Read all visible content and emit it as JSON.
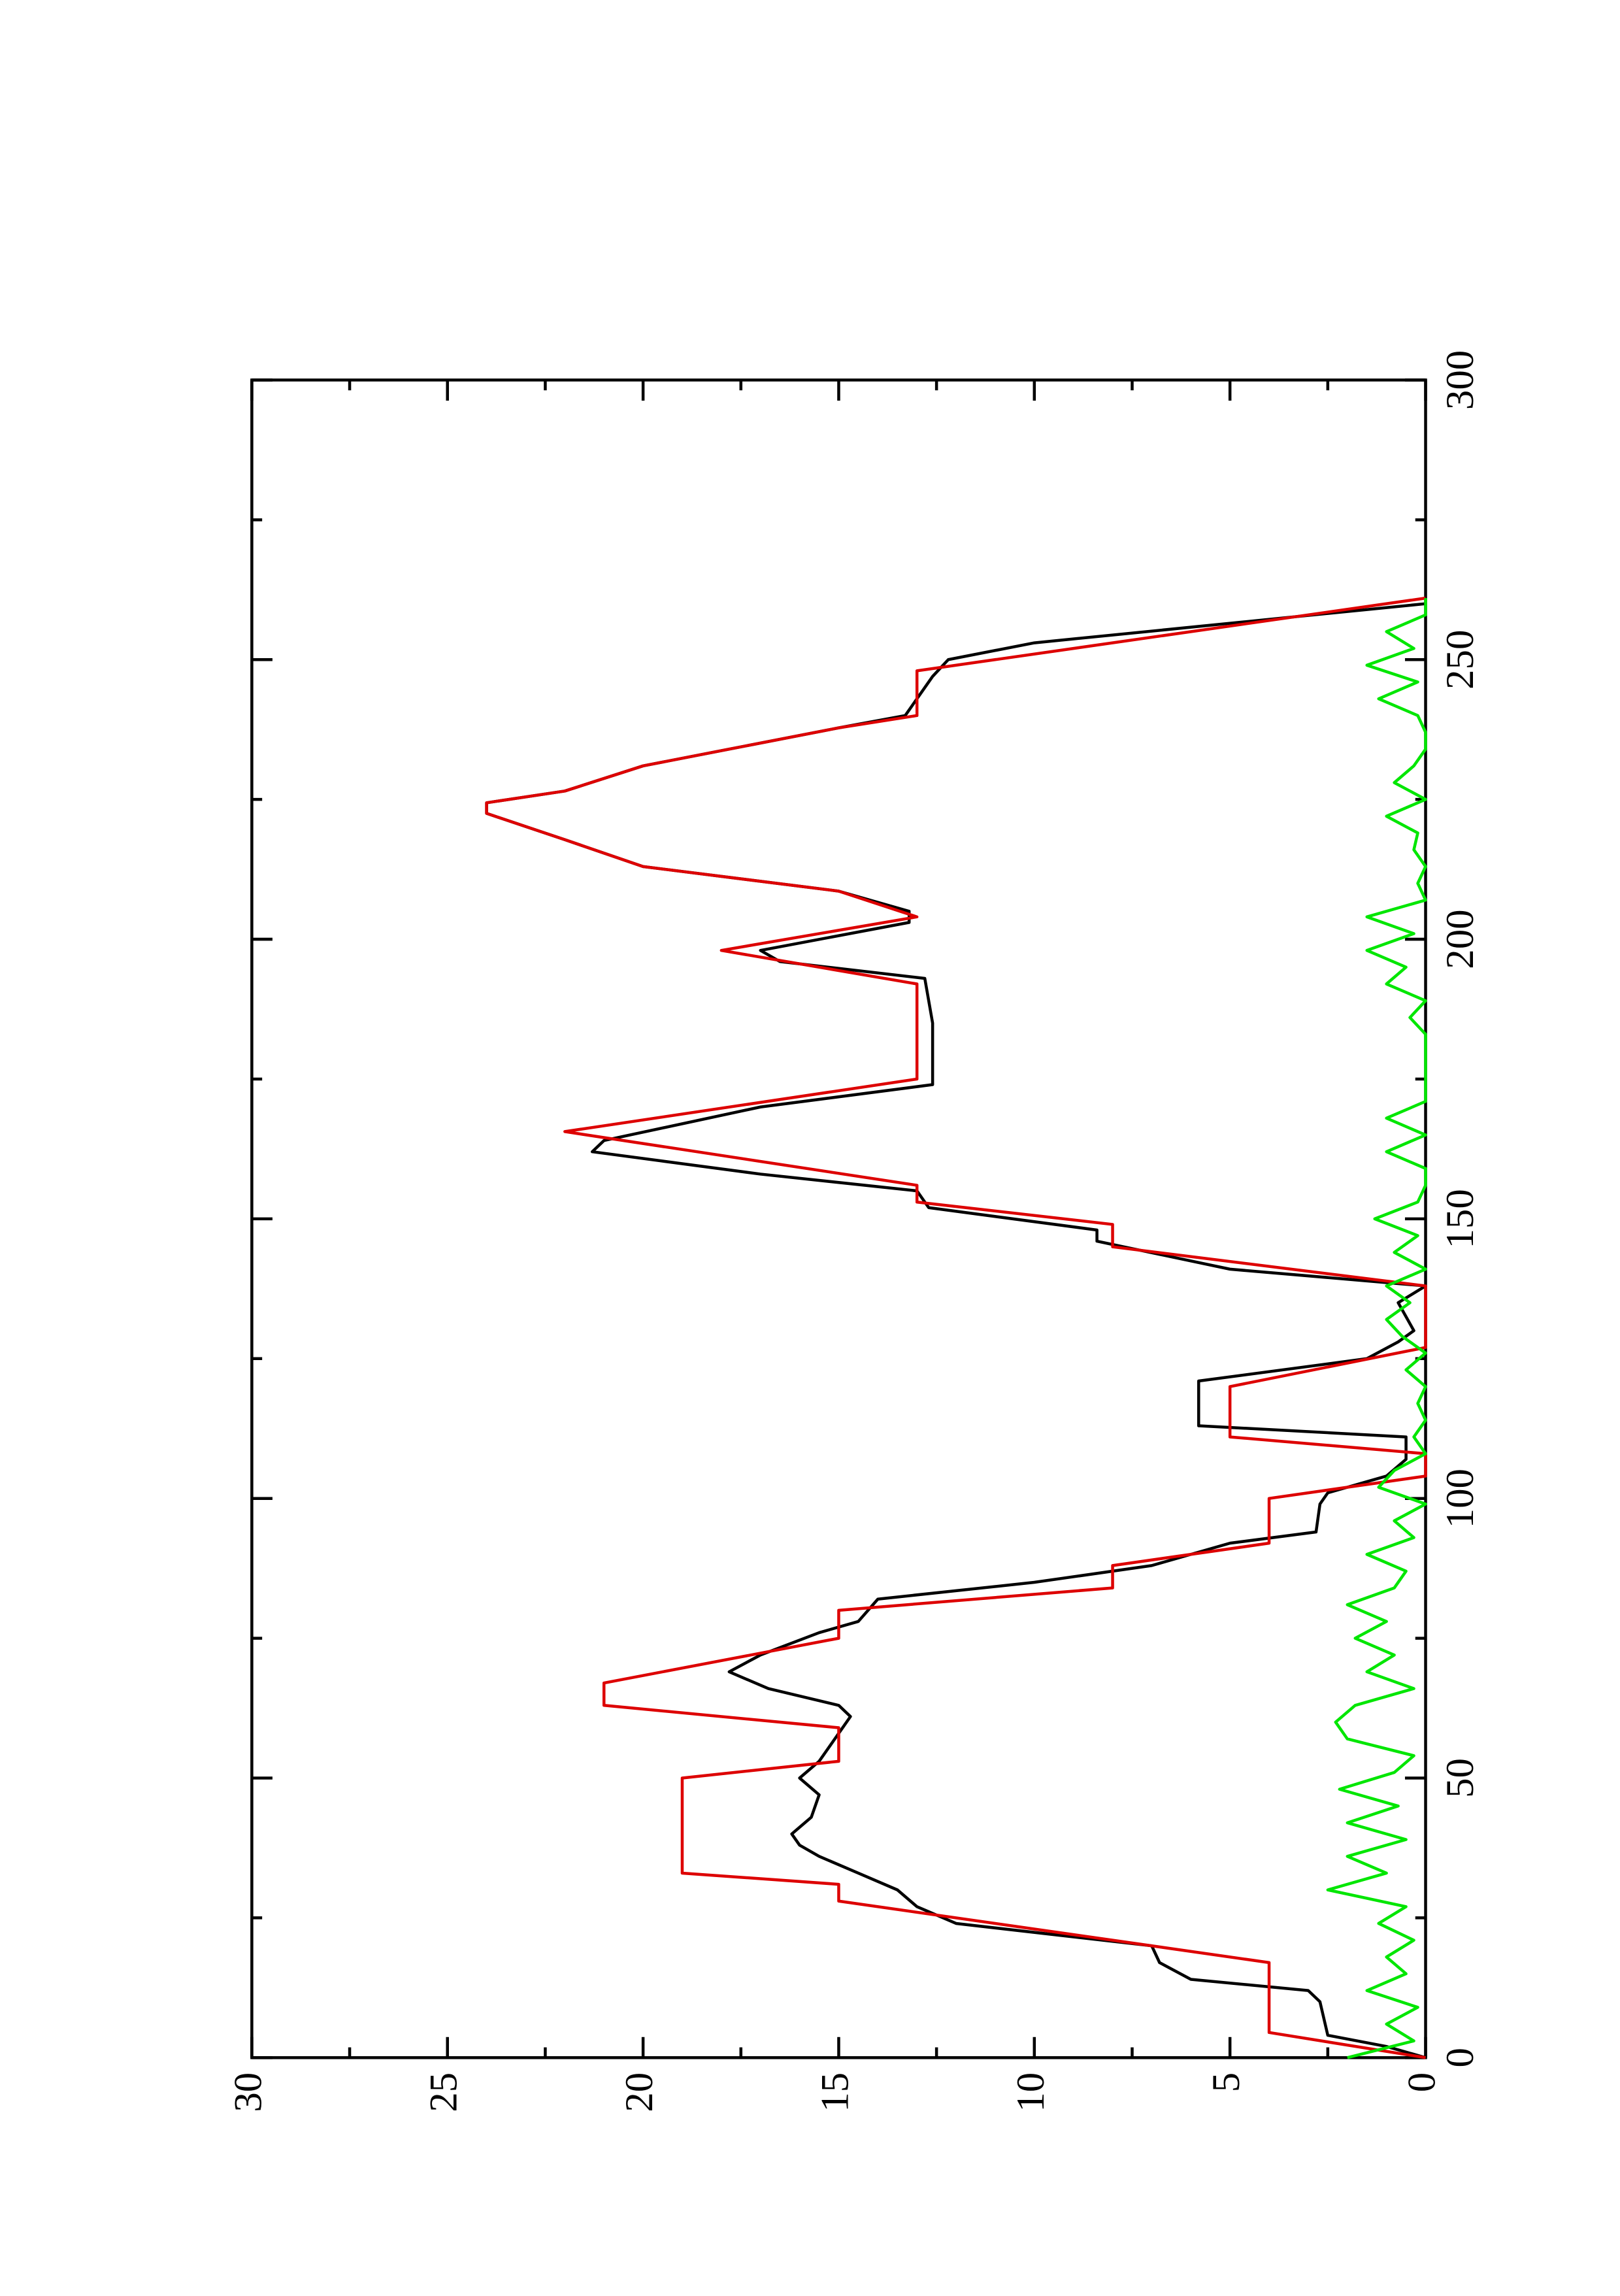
{
  "chart_data": {
    "type": "line",
    "xlim": [
      0,
      300
    ],
    "xticks": [
      0,
      50,
      100,
      150,
      200,
      250,
      300
    ],
    "ylim": [
      0,
      30
    ],
    "yticks": [
      0,
      5,
      10,
      15,
      20,
      25,
      30
    ],
    "series": [
      {
        "color": "#000000",
        "x": [
          0,
          2,
          4,
          10,
          12,
          14,
          17,
          20,
          24,
          27,
          30,
          33,
          36,
          38,
          40,
          43,
          47,
          50,
          53,
          58,
          61,
          63,
          66,
          69,
          72,
          76,
          78,
          82,
          85,
          88,
          92,
          94,
          99,
          101,
          104,
          107,
          111,
          113,
          121,
          125,
          128,
          130,
          135,
          138,
          141,
          146,
          148,
          152,
          155,
          158,
          162,
          164,
          170,
          174,
          185,
          193,
          196,
          198,
          203,
          205,
          208.6,
          213,
          217.8,
          222.5,
          224.4,
          226.5,
          231,
          237.8,
          240,
          244,
          247,
          250,
          253,
          260
        ],
        "values": [
          0,
          1,
          2.5,
          2.7,
          3,
          6,
          6.8,
          7,
          12,
          13,
          13.5,
          14.5,
          15.5,
          16,
          16.2,
          15.7,
          15.5,
          16,
          15.5,
          15,
          14.7,
          15,
          16.8,
          17.8,
          17,
          15.5,
          14.5,
          14,
          10,
          7,
          5,
          2.8,
          2.7,
          2.5,
          1,
          0.5,
          0.5,
          5.8,
          5.8,
          1.5,
          0.7,
          0.3,
          0.7,
          0,
          5,
          8.4,
          8.4,
          12.7,
          13,
          17,
          21.3,
          21,
          17,
          12.6,
          12.6,
          12.8,
          16.5,
          17,
          13.2,
          13.2,
          15,
          20,
          22,
          24,
          24,
          22,
          20,
          15,
          13.3,
          12.9,
          12.6,
          12.2,
          10,
          0
        ]
      },
      {
        "color": "#dd0000",
        "x": [
          0,
          4.5,
          17,
          21,
          28,
          31,
          33,
          50,
          53,
          59,
          63,
          67,
          75,
          80,
          84,
          88,
          92,
          100,
          104,
          108,
          111,
          120,
          127,
          138,
          145,
          149,
          153,
          156,
          165.6,
          175,
          192,
          198,
          204,
          208.6,
          213,
          217.8,
          222.5,
          224.4,
          226.5,
          231,
          237.8,
          240,
          248,
          261
        ],
        "values": [
          0,
          4,
          4,
          8,
          15,
          15,
          19,
          19,
          15,
          15,
          21,
          21,
          15,
          15,
          8,
          8,
          4,
          4,
          0,
          0,
          5,
          5,
          0,
          0,
          8,
          8,
          13,
          13,
          22,
          13,
          13,
          18,
          13,
          15,
          20,
          22,
          24,
          24,
          22,
          20,
          15,
          13,
          13,
          0
        ]
      },
      {
        "color": "#00e600",
        "x": [
          0,
          3,
          6,
          9,
          12,
          15,
          18,
          21,
          24,
          27,
          30,
          33,
          36,
          39,
          42,
          45,
          48,
          51,
          54,
          57,
          60,
          63,
          66,
          69,
          72,
          75,
          78,
          81,
          84,
          87,
          90,
          93,
          96,
          99,
          102,
          105,
          108,
          111,
          114,
          117,
          120,
          123,
          126,
          129,
          132,
          135,
          138,
          141,
          144,
          147,
          150,
          153,
          156,
          159,
          162,
          165,
          168,
          171,
          174,
          177,
          180,
          183,
          186,
          189,
          192,
          195,
          198,
          201,
          204,
          207,
          210,
          213,
          216,
          219,
          222,
          225,
          228,
          231,
          234,
          237,
          240,
          243,
          246,
          249,
          252,
          255,
          258,
          261
        ],
        "values": [
          2,
          0.3,
          1,
          0.2,
          1.5,
          0.5,
          1,
          0.3,
          1.2,
          0.5,
          2.5,
          1,
          2,
          0.5,
          2,
          0.7,
          2.2,
          0.8,
          0.3,
          2,
          2.3,
          1.8,
          0.3,
          1.5,
          0.8,
          1.8,
          1,
          2,
          0.8,
          0.5,
          1.5,
          0.3,
          0.8,
          0,
          1.2,
          0.8,
          0,
          0.3,
          0,
          0.2,
          0,
          0.5,
          0,
          0.6,
          1,
          0.4,
          1,
          0,
          0.8,
          0.2,
          1.3,
          0.2,
          0,
          0,
          1,
          0,
          1,
          0,
          0,
          0,
          0,
          0,
          0.4,
          0,
          1,
          0.5,
          1.5,
          0.3,
          1.5,
          0,
          0.2,
          0,
          0.3,
          0.2,
          1,
          0,
          0.8,
          0.3,
          0,
          0,
          0.2,
          1.2,
          0.2,
          1.5,
          0.3,
          1,
          0,
          0
        ]
      }
    ]
  }
}
